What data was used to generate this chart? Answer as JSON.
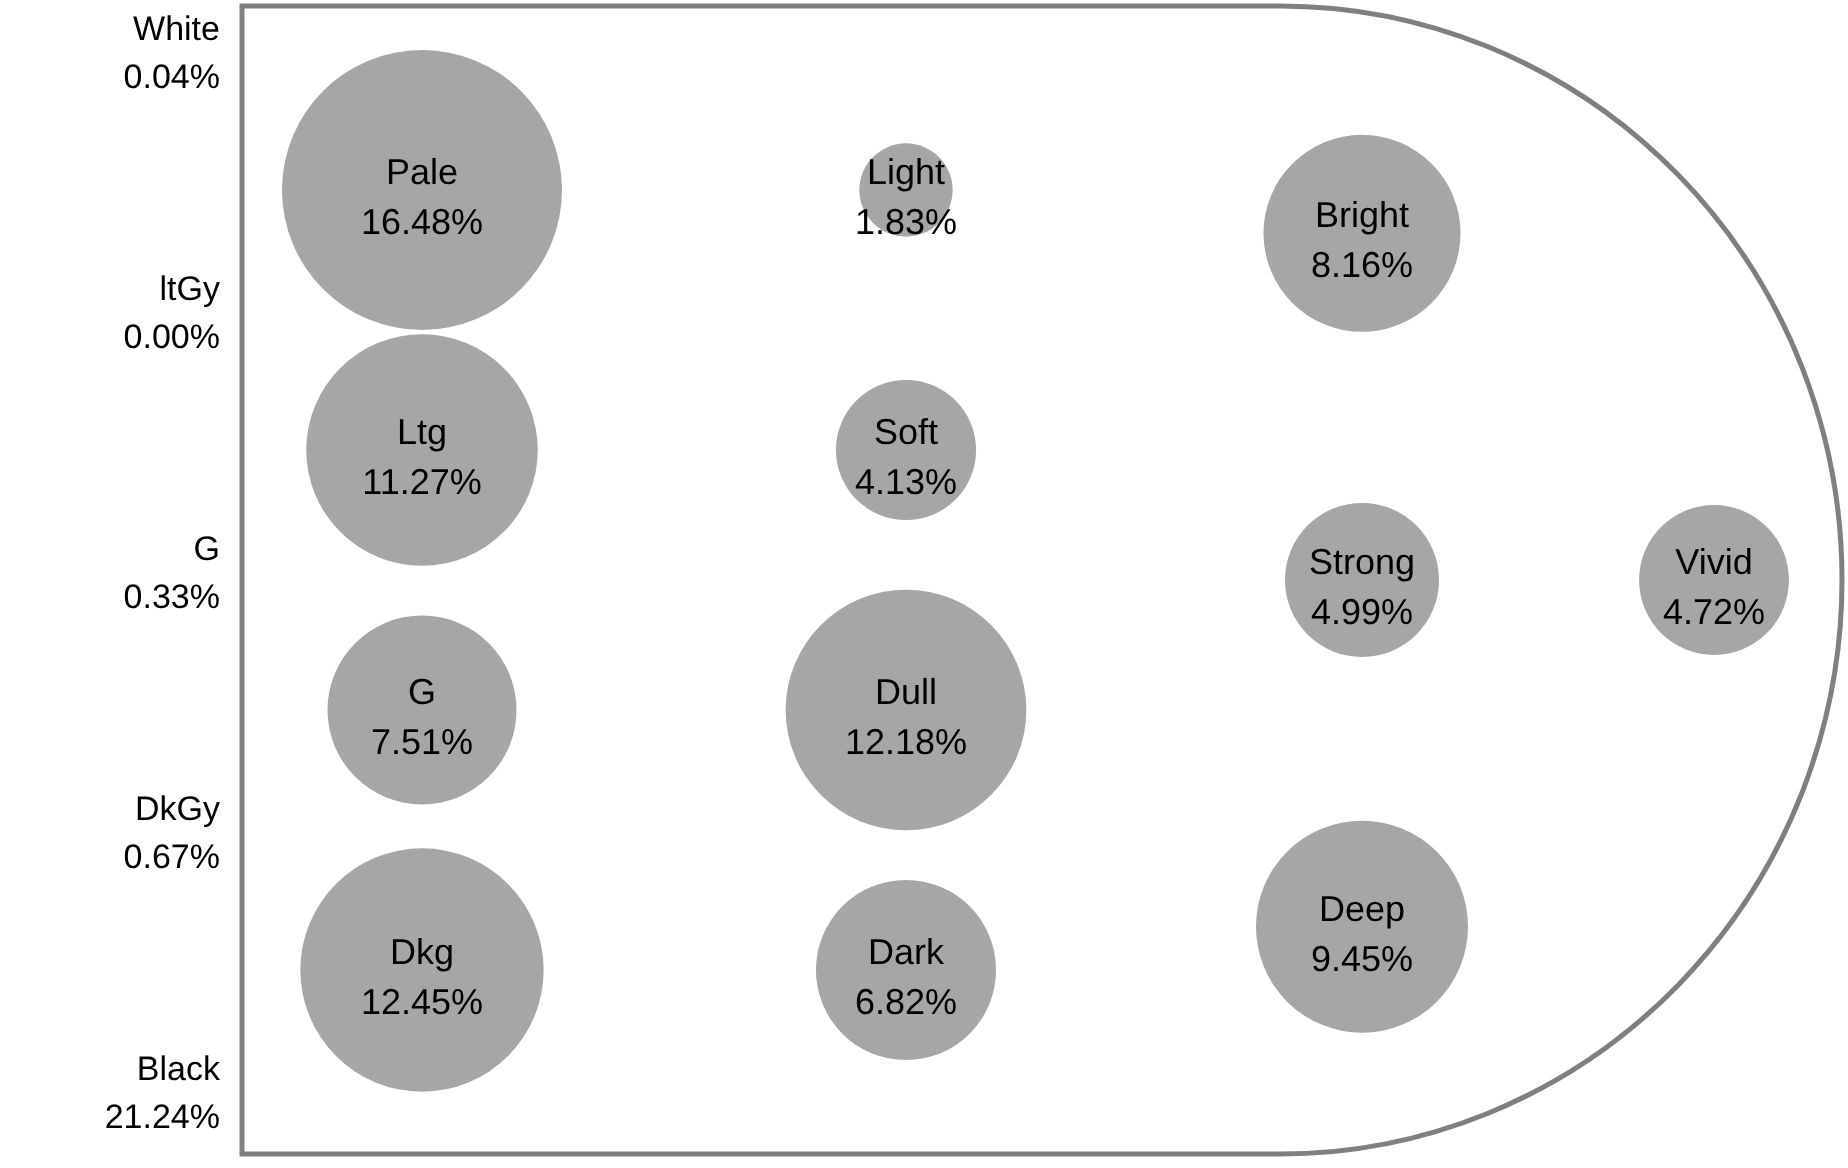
{
  "chart_data": {
    "type": "other",
    "categories": [
      "White",
      "ltGy",
      "G",
      "DkGy",
      "Black",
      "Pale",
      "Ltg",
      "G",
      "Dkg",
      "Light",
      "Soft",
      "Dull",
      "Dark",
      "Bright",
      "Strong",
      "Deep",
      "Vivid"
    ],
    "series": [
      {
        "type": "other",
        "values": [
          0.04,
          0.0,
          0.33,
          0.67,
          21.24,
          null,
          null,
          null,
          null,
          null,
          null,
          null,
          null,
          null,
          null,
          null,
          null
        ],
        "value_labels": [
          "0.04%",
          "0.00%",
          "0.33%",
          "0.67%",
          "21.24%",
          null,
          null,
          null,
          null,
          null,
          null,
          null,
          null,
          null,
          null,
          null,
          null
        ]
      },
      {
        "type": "bubble",
        "color": "#a6a6a6",
        "values": [
          null,
          null,
          null,
          null,
          null,
          16.48,
          11.27,
          7.51,
          12.45,
          null,
          null,
          null,
          null,
          null,
          null,
          null,
          null
        ],
        "value_labels": [
          null,
          null,
          null,
          null,
          null,
          "16.48%",
          "11.27%",
          "7.51%",
          "12.45%",
          null,
          null,
          null,
          null,
          null,
          null,
          null,
          null
        ]
      },
      {
        "type": "bubble",
        "color": "#a6a6a6",
        "values": [
          null,
          null,
          null,
          null,
          null,
          null,
          null,
          null,
          null,
          1.83,
          4.13,
          12.18,
          6.82,
          null,
          null,
          null,
          null
        ],
        "value_labels": [
          null,
          null,
          null,
          null,
          null,
          null,
          null,
          null,
          null,
          "1.83%",
          "4.13%",
          "12.18%",
          "6.82%",
          null,
          null,
          null,
          null
        ]
      },
      {
        "type": "bubble",
        "color": "#a6a6a6",
        "values": [
          null,
          null,
          null,
          null,
          null,
          null,
          null,
          null,
          null,
          null,
          null,
          null,
          null,
          8.16,
          4.99,
          9.45,
          null
        ],
        "value_labels": [
          null,
          null,
          null,
          null,
          null,
          null,
          null,
          null,
          null,
          null,
          null,
          null,
          null,
          "8.16%",
          "4.99%",
          "9.45%",
          null
        ]
      },
      {
        "type": "bubble",
        "color": "#a6a6a6",
        "values": [
          null,
          null,
          null,
          null,
          null,
          null,
          null,
          null,
          null,
          null,
          null,
          null,
          null,
          null,
          null,
          null,
          4.72
        ],
        "value_labels": [
          null,
          null,
          null,
          null,
          null,
          null,
          null,
          null,
          null,
          null,
          null,
          null,
          null,
          null,
          null,
          null,
          "4.72%"
        ]
      }
    ]
  }
}
